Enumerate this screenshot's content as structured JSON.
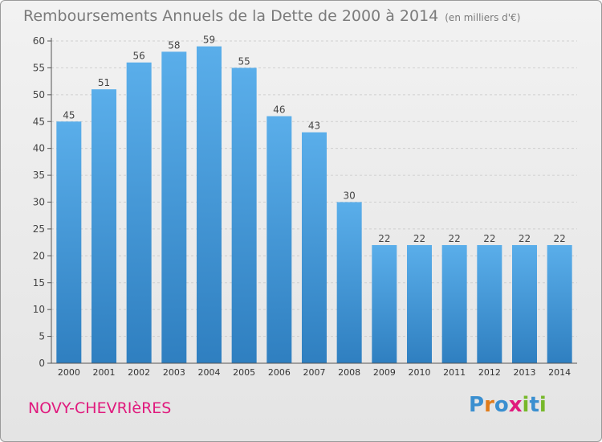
{
  "chart_data": {
    "type": "bar",
    "title": "Remboursements Annuels de la Dette de 2000 à 2014",
    "subtitle": "(en milliers d'€)",
    "categories": [
      "2000",
      "2001",
      "2002",
      "2003",
      "2004",
      "2005",
      "2006",
      "2007",
      "2008",
      "2009",
      "2010",
      "2011",
      "2012",
      "2013",
      "2014"
    ],
    "values": [
      45,
      51,
      56,
      58,
      59,
      55,
      46,
      43,
      30,
      22,
      22,
      22,
      22,
      22,
      22
    ],
    "ylim": [
      0,
      60
    ],
    "yticks": [
      0,
      5,
      10,
      15,
      20,
      25,
      30,
      35,
      40,
      45,
      50,
      55,
      60
    ],
    "grid": true,
    "bar_color_top": "#5aaeea",
    "bar_color_bottom": "#2f7fc0"
  },
  "commune": "NOVY-CHEVRIèRES",
  "logo": {
    "text": "Proxiti",
    "letter_colors": [
      "#3a8fd0",
      "#e07b1a",
      "#3a8fd0",
      "#e0197d",
      "#77b82a",
      "#3a8fd0",
      "#77b82a"
    ]
  }
}
